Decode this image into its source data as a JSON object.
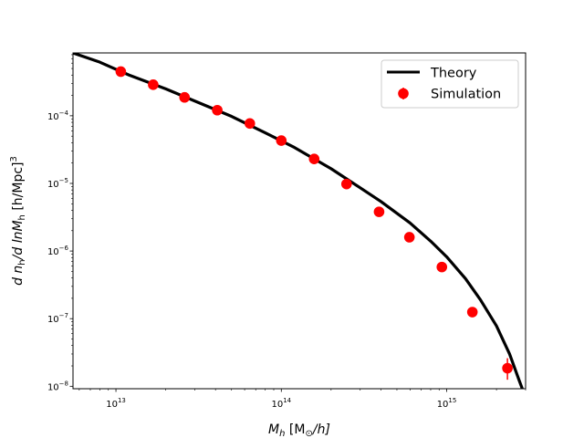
{
  "chart_data": {
    "type": "scatter",
    "x_scale": "log",
    "y_scale": "log",
    "xlim": [
      5500000000000.0,
      3000000000000000.0
    ],
    "ylim": [
      9.2e-09,
      0.00085
    ],
    "xlabel_text": "M",
    "xlabel_sub": "h",
    "xlabel_units": " [M",
    "xlabel_units_sub": "⊙",
    "xlabel_units_end": "/h]",
    "ylabel_text": "d n",
    "ylabel_sub1": "h",
    "ylabel_mid": "/d lnM",
    "ylabel_sub2": "h",
    "ylabel_units": " [h/Mpc]",
    "ylabel_sup": "3",
    "x_ticks": [
      {
        "base": "10",
        "exp": "13",
        "value": 10000000000000.0
      },
      {
        "base": "10",
        "exp": "14",
        "value": 100000000000000.0
      },
      {
        "base": "10",
        "exp": "15",
        "value": 1000000000000000.0
      }
    ],
    "y_ticks": [
      {
        "base": "10",
        "exp": "−8",
        "value": 1e-08
      },
      {
        "base": "10",
        "exp": "−7",
        "value": 1e-07
      },
      {
        "base": "10",
        "exp": "−6",
        "value": 1e-06
      },
      {
        "base": "10",
        "exp": "−5",
        "value": 1e-05
      },
      {
        "base": "10",
        "exp": "−4",
        "value": 0.0001
      }
    ],
    "legend_position": "upper-right",
    "series": [
      {
        "name": "Theory",
        "kind": "line",
        "color": "#000000",
        "points": [
          [
            5500000000000.0,
            0.00085
          ],
          [
            8000000000000.0,
            0.00062
          ],
          [
            12000000000000.0,
            0.0004
          ],
          [
            20000000000000.0,
            0.00025
          ],
          [
            30000000000000.0,
            0.000165
          ],
          [
            50000000000000.0,
            9.8e-05
          ],
          [
            80000000000000.0,
            5.6e-05
          ],
          [
            120000000000000.0,
            3.4e-05
          ],
          [
            200000000000000.0,
            1.65e-05
          ],
          [
            300000000000000.0,
            8.6e-06
          ],
          [
            400000000000000.0,
            5.4e-06
          ],
          [
            600000000000000.0,
            2.6e-06
          ],
          [
            800000000000000.0,
            1.4e-06
          ],
          [
            1000000000000000.0,
            8.2e-07
          ],
          [
            1300000000000000.0,
            3.9e-07
          ],
          [
            1600000000000000.0,
            1.9e-07
          ],
          [
            2000000000000000.0,
            7.8e-08
          ],
          [
            2400000000000000.0,
            3e-08
          ],
          [
            2750000000000000.0,
            1.2e-08
          ],
          [
            2900000000000000.0,
            8.5e-09
          ]
        ]
      },
      {
        "name": "Simulation",
        "kind": "errorbar",
        "color": "#ff0000",
        "points": [
          [
            10700000000000.0,
            0.00045
          ],
          [
            16800000000000.0,
            0.000288
          ],
          [
            26000000000000.0,
            0.000187
          ],
          [
            41000000000000.0,
            0.000121
          ],
          [
            64500000000000.0,
            7.7e-05
          ],
          [
            100000000000000.0,
            4.3e-05
          ],
          [
            158000000000000.0,
            2.3e-05
          ],
          [
            248000000000000.0,
            9.8e-06
          ],
          [
            390000000000000.0,
            3.8e-06
          ],
          [
            595000000000000.0,
            1.6e-06
          ],
          [
            935000000000000.0,
            5.8e-07
          ],
          [
            1430000000000000.0,
            1.25e-07
          ],
          [
            2330000000000000.0,
            1.85e-08
          ]
        ],
        "err_high": [
          null,
          null,
          null,
          null,
          null,
          null,
          null,
          null,
          null,
          null,
          null,
          null,
          2.6e-08
        ],
        "err_low": [
          null,
          null,
          null,
          null,
          null,
          null,
          null,
          null,
          null,
          null,
          null,
          null,
          1.25e-08
        ]
      }
    ]
  }
}
